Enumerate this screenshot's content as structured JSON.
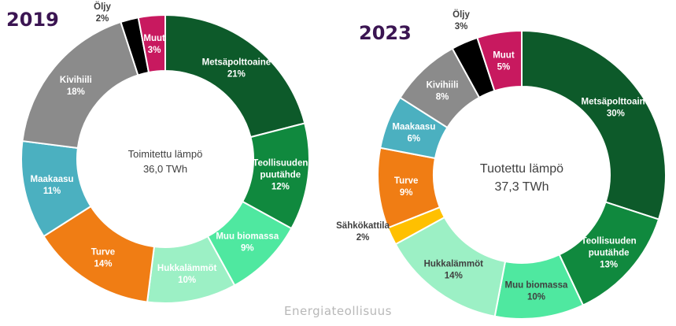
{
  "brand": "Energiateollisuus",
  "chart_data": [
    {
      "type": "pie",
      "donut": true,
      "title": "2019",
      "center_label": [
        "Toimitettu lämpö",
        "36,0 TWh"
      ],
      "slices": [
        {
          "label": [
            "Metsäpolttoaine"
          ],
          "value": 21,
          "value_label": "21%",
          "color": "#0d5a2a",
          "text_color": "#ffffff"
        },
        {
          "label": [
            "Teollisuuden",
            "puutähde"
          ],
          "value": 12,
          "value_label": "12%",
          "color": "#10893e",
          "text_color": "#ffffff"
        },
        {
          "label": [
            "Muu biomassa"
          ],
          "value": 9,
          "value_label": "9%",
          "color": "#4fe8a0",
          "text_color": "#ffffff"
        },
        {
          "label": [
            "Hukkalämmöt"
          ],
          "value": 10,
          "value_label": "10%",
          "color": "#9cf0c5",
          "text_color": "#ffffff"
        },
        {
          "label": [
            "Turve"
          ],
          "value": 14,
          "value_label": "14%",
          "color": "#f07d14",
          "text_color": "#ffffff"
        },
        {
          "label": [
            "Maakaasu"
          ],
          "value": 11,
          "value_label": "11%",
          "color": "#4bb0c0",
          "text_color": "#ffffff"
        },
        {
          "label": [
            "Kivihiili"
          ],
          "value": 18,
          "value_label": "18%",
          "color": "#8b8b8b",
          "text_color": "#ffffff"
        },
        {
          "label": [
            "Öljy"
          ],
          "value": 2,
          "value_label": "2%",
          "color": "#000000",
          "text_color": "#404040",
          "outside": true
        },
        {
          "label": [
            "Muut"
          ],
          "value": 3,
          "value_label": "3%",
          "color": "#c8195f",
          "text_color": "#ffffff"
        }
      ]
    },
    {
      "type": "pie",
      "donut": true,
      "title": "2023",
      "center_label": [
        "Tuotettu lämpö",
        "37,3 TWh"
      ],
      "slices": [
        {
          "label": [
            "Metsäpolttoaine"
          ],
          "value": 30,
          "value_label": "30%",
          "color": "#0d5a2a",
          "text_color": "#ffffff"
        },
        {
          "label": [
            "Teollisuuden",
            "puutähde"
          ],
          "value": 13,
          "value_label": "13%",
          "color": "#10893e",
          "text_color": "#ffffff"
        },
        {
          "label": [
            "Muu biomassa"
          ],
          "value": 10,
          "value_label": "10%",
          "color": "#4fe8a0",
          "text_color": "#404040"
        },
        {
          "label": [
            "Hukkalämmöt"
          ],
          "value": 14,
          "value_label": "14%",
          "color": "#9cf0c5",
          "text_color": "#404040"
        },
        {
          "label": [
            "Sähkökattila"
          ],
          "value": 2,
          "value_label": "2%",
          "color": "#ffc000",
          "text_color": "#404040",
          "outside": true
        },
        {
          "label": [
            "Turve"
          ],
          "value": 9,
          "value_label": "9%",
          "color": "#f07d14",
          "text_color": "#ffffff"
        },
        {
          "label": [
            "Maakaasu"
          ],
          "value": 6,
          "value_label": "6%",
          "color": "#4bb0c0",
          "text_color": "#ffffff"
        },
        {
          "label": [
            "Kivihiili"
          ],
          "value": 8,
          "value_label": "8%",
          "color": "#8b8b8b",
          "text_color": "#ffffff"
        },
        {
          "label": [
            "Öljy"
          ],
          "value": 3,
          "value_label": "3%",
          "color": "#000000",
          "text_color": "#404040",
          "outside": true
        },
        {
          "label": [
            "Muut"
          ],
          "value": 5,
          "value_label": "5%",
          "color": "#c8195f",
          "text_color": "#ffffff"
        }
      ]
    }
  ]
}
